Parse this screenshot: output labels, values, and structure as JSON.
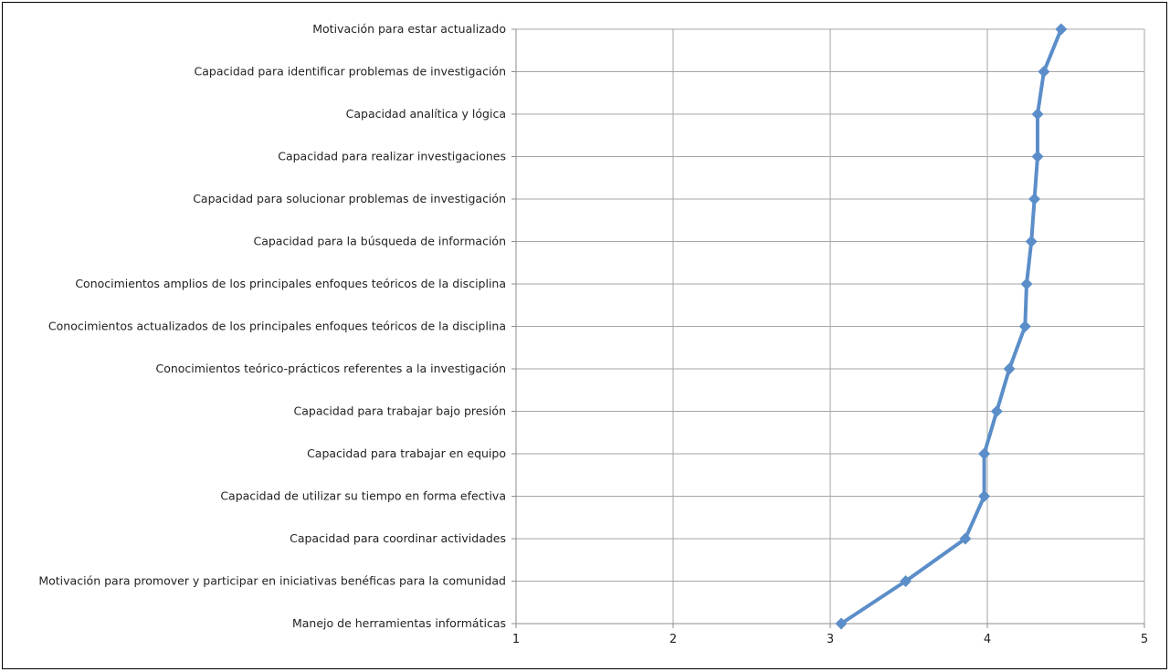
{
  "chart_data": {
    "type": "line",
    "orientation": "horizontal",
    "title": "",
    "xlabel": "",
    "ylabel": "",
    "xlim": [
      1,
      5
    ],
    "x_ticks": [
      "1",
      "2",
      "3",
      "4",
      "5"
    ],
    "grid": true,
    "legend": "none",
    "colors": {
      "series": "#5b8ec9",
      "grid": "#a6a6a6",
      "axis": "#8c8c8c"
    },
    "categories": [
      "Motivación para estar actualizado",
      "Capacidad para identificar problemas de investigación",
      "Capacidad analítica y lógica",
      "Capacidad para realizar investigaciones",
      "Capacidad para solucionar problemas de investigación",
      "Capacidad para la búsqueda de información",
      "Conocimientos amplios de los principales enfoques teóricos de la disciplina",
      "Conocimientos actualizados de los principales enfoques teóricos de la disciplina",
      "Conocimientos teórico-prácticos referentes a la investigación",
      "Capacidad para trabajar bajo presión",
      "Capacidad para trabajar en equipo",
      "Capacidad de utilizar su tiempo en forma efectiva",
      "Capacidad para coordinar actividades",
      "Motivación para promover y participar en iniciativas benéficas para la comunidad",
      "Manejo de herramientas informáticas"
    ],
    "series": [
      {
        "values": [
          4.47,
          4.36,
          4.32,
          4.32,
          4.3,
          4.28,
          4.25,
          4.24,
          4.14,
          4.06,
          3.98,
          3.98,
          3.86,
          3.48,
          3.07
        ]
      }
    ]
  }
}
